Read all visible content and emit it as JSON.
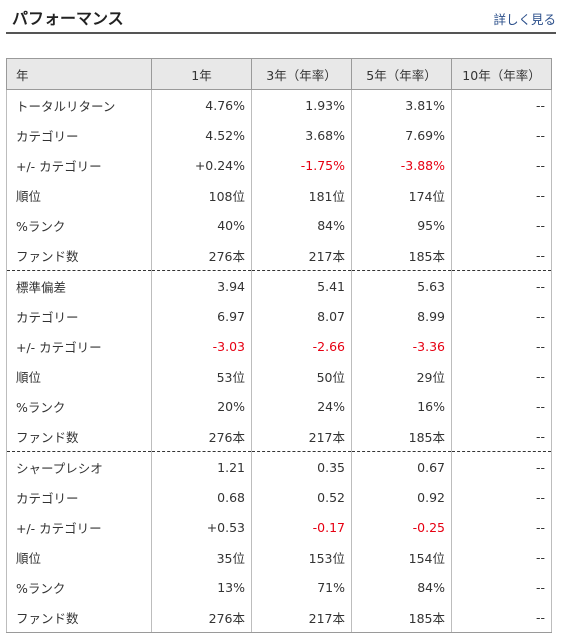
{
  "header": {
    "title": "パフォーマンス",
    "more_link": "詳しく見る"
  },
  "colors": {
    "negative": "#e60012",
    "header_bg": "#e8e8e8"
  },
  "columns": [
    "年",
    "1年",
    "3年（年率）",
    "5年（年率）",
    "10年（年率）"
  ],
  "rows": [
    {
      "label": "トータルリターン",
      "values": [
        "4.76%",
        "1.93%",
        "3.81%",
        "--"
      ],
      "negative": [
        false,
        false,
        false,
        false
      ]
    },
    {
      "label": "カテゴリー",
      "values": [
        "4.52%",
        "3.68%",
        "7.69%",
        "--"
      ],
      "negative": [
        false,
        false,
        false,
        false
      ]
    },
    {
      "label": "+/- カテゴリー",
      "values": [
        "+0.24%",
        "-1.75%",
        "-3.88%",
        "--"
      ],
      "negative": [
        false,
        true,
        true,
        false
      ]
    },
    {
      "label": "順位",
      "values": [
        "108位",
        "181位",
        "174位",
        "--"
      ],
      "negative": [
        false,
        false,
        false,
        false
      ]
    },
    {
      "label": "%ランク",
      "values": [
        "40%",
        "84%",
        "95%",
        "--"
      ],
      "negative": [
        false,
        false,
        false,
        false
      ]
    },
    {
      "label": "ファンド数",
      "values": [
        "276本",
        "217本",
        "185本",
        "--"
      ],
      "negative": [
        false,
        false,
        false,
        false
      ]
    },
    {
      "label": "標準偏差",
      "values": [
        "3.94",
        "5.41",
        "5.63",
        "--"
      ],
      "negative": [
        false,
        false,
        false,
        false
      ]
    },
    {
      "label": "カテゴリー",
      "values": [
        "6.97",
        "8.07",
        "8.99",
        "--"
      ],
      "negative": [
        false,
        false,
        false,
        false
      ]
    },
    {
      "label": "+/- カテゴリー",
      "values": [
        "-3.03",
        "-2.66",
        "-3.36",
        "--"
      ],
      "negative": [
        true,
        true,
        true,
        false
      ]
    },
    {
      "label": "順位",
      "values": [
        "53位",
        "50位",
        "29位",
        "--"
      ],
      "negative": [
        false,
        false,
        false,
        false
      ]
    },
    {
      "label": "%ランク",
      "values": [
        "20%",
        "24%",
        "16%",
        "--"
      ],
      "negative": [
        false,
        false,
        false,
        false
      ]
    },
    {
      "label": "ファンド数",
      "values": [
        "276本",
        "217本",
        "185本",
        "--"
      ],
      "negative": [
        false,
        false,
        false,
        false
      ]
    },
    {
      "label": "シャープレシオ",
      "values": [
        "1.21",
        "0.35",
        "0.67",
        "--"
      ],
      "negative": [
        false,
        false,
        false,
        false
      ]
    },
    {
      "label": "カテゴリー",
      "values": [
        "0.68",
        "0.52",
        "0.92",
        "--"
      ],
      "negative": [
        false,
        false,
        false,
        false
      ]
    },
    {
      "label": "+/- カテゴリー",
      "values": [
        "+0.53",
        "-0.17",
        "-0.25",
        "--"
      ],
      "negative": [
        false,
        true,
        true,
        false
      ]
    },
    {
      "label": "順位",
      "values": [
        "35位",
        "153位",
        "154位",
        "--"
      ],
      "negative": [
        false,
        false,
        false,
        false
      ]
    },
    {
      "label": "%ランク",
      "values": [
        "13%",
        "71%",
        "84%",
        "--"
      ],
      "negative": [
        false,
        false,
        false,
        false
      ]
    },
    {
      "label": "ファンド数",
      "values": [
        "276本",
        "217本",
        "185本",
        "--"
      ],
      "negative": [
        false,
        false,
        false,
        false
      ]
    }
  ]
}
